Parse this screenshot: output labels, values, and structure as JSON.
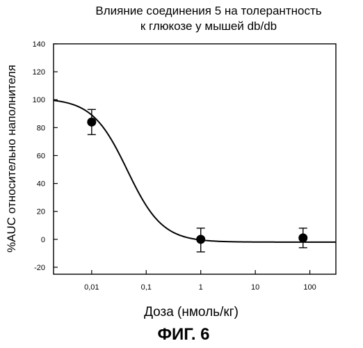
{
  "chart_data": {
    "type": "scatter",
    "title_line1": "Влияние соединения 5 на толерантность",
    "title_line2": "к глюкозе у мышей db/db",
    "xlabel": "Доза  (нмоль/кг)",
    "ylabel": "%AUC относительно наполнителя",
    "x_scale": "log",
    "xlim": [
      0.002,
      300
    ],
    "ylim": [
      -25,
      140
    ],
    "x_ticks": [
      0.01,
      0.1,
      1,
      10,
      100
    ],
    "x_tick_labels": [
      "0,01",
      "0,1",
      "1",
      "10",
      "100"
    ],
    "y_ticks": [
      -20,
      0,
      20,
      40,
      60,
      80,
      100,
      120,
      140
    ],
    "y_tick_labels": [
      "-20",
      "0",
      "20",
      "40",
      "60",
      "80",
      "100",
      "120",
      "140"
    ],
    "series": [
      {
        "points": [
          {
            "x": 0.01,
            "y": 84,
            "err_low": 75,
            "err_high": 93
          },
          {
            "x": 1,
            "y": 0,
            "err_low": -9,
            "err_high": 8
          },
          {
            "x": 75,
            "y": 1,
            "err_low": -6,
            "err_high": 8
          }
        ]
      }
    ],
    "fit_curve": {
      "bottom": -2,
      "top": 101,
      "ec50": 0.045,
      "hill": 1.35
    },
    "grid": false,
    "legend": "none"
  },
  "figure_caption": "ФИГ. 6"
}
